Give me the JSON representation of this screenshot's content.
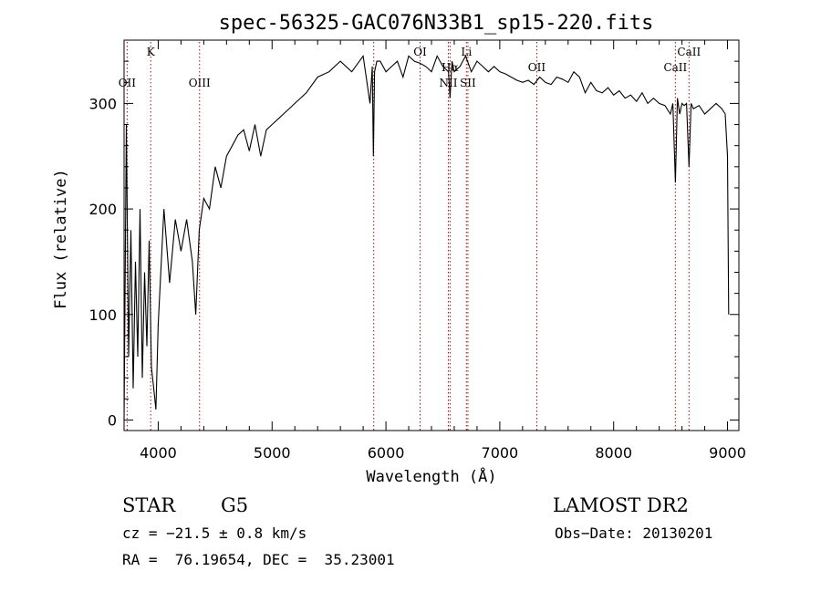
{
  "chart_data": {
    "type": "line",
    "title": "spec-56325-GAC076N33B1_sp15-220.fits",
    "xlabel": "Wavelength (Å)",
    "ylabel": "Flux (relative)",
    "xlim": [
      3700,
      9100
    ],
    "ylim": [
      -10,
      360
    ],
    "xticks": [
      4000,
      5000,
      6000,
      7000,
      8000,
      9000
    ],
    "yticks": [
      0,
      100,
      200,
      300
    ],
    "grid": false,
    "series": [
      {
        "x": [
          3700,
          3720,
          3740,
          3760,
          3780,
          3800,
          3820,
          3840,
          3860,
          3880,
          3900,
          3920,
          3940,
          3960,
          3980,
          4000,
          4050,
          4100,
          4150,
          4200,
          4250,
          4300,
          4330,
          4360,
          4400,
          4450,
          4500,
          4550,
          4600,
          4650,
          4700,
          4750,
          4800,
          4850,
          4900,
          4950,
          5000,
          5100,
          5200,
          5300,
          5400,
          5500,
          5600,
          5700,
          5800,
          5860,
          5880,
          5890,
          5900,
          5920,
          5950,
          6000,
          6050,
          6100,
          6150,
          6200,
          6250,
          6300,
          6350,
          6400,
          6450,
          6500,
          6550,
          6563,
          6580,
          6600,
          6650,
          6700,
          6750,
          6800,
          6850,
          6900,
          6950,
          7000,
          7050,
          7100,
          7150,
          7200,
          7250,
          7300,
          7350,
          7400,
          7450,
          7500,
          7550,
          7600,
          7650,
          7700,
          7750,
          7800,
          7850,
          7900,
          7950,
          8000,
          8050,
          8100,
          8150,
          8200,
          8250,
          8300,
          8350,
          8400,
          8450,
          8498,
          8520,
          8542,
          8560,
          8580,
          8600,
          8620,
          8640,
          8662,
          8680,
          8700,
          8750,
          8800,
          8850,
          8900,
          8950,
          8980,
          9000,
          9010
        ],
        "y": [
          0,
          280,
          60,
          180,
          30,
          150,
          60,
          200,
          40,
          140,
          70,
          170,
          50,
          30,
          10,
          90,
          200,
          130,
          190,
          160,
          190,
          150,
          100,
          180,
          210,
          200,
          240,
          220,
          250,
          260,
          270,
          275,
          255,
          280,
          250,
          275,
          280,
          290,
          300,
          310,
          325,
          330,
          340,
          330,
          345,
          300,
          335,
          250,
          330,
          340,
          340,
          330,
          335,
          340,
          325,
          345,
          340,
          338,
          335,
          330,
          345,
          335,
          330,
          305,
          340,
          330,
          335,
          345,
          330,
          340,
          335,
          330,
          335,
          330,
          328,
          325,
          322,
          320,
          322,
          318,
          325,
          320,
          318,
          325,
          323,
          320,
          330,
          325,
          310,
          320,
          312,
          310,
          315,
          308,
          312,
          305,
          308,
          302,
          310,
          300,
          305,
          300,
          298,
          290,
          300,
          225,
          305,
          290,
          300,
          298,
          300,
          240,
          300,
          295,
          298,
          290,
          295,
          300,
          295,
          290,
          250,
          100
        ]
      }
    ],
    "lines": [
      {
        "label": "OII",
        "x": 3727,
        "row": "low"
      },
      {
        "label": "K",
        "x": 3934,
        "row": "high"
      },
      {
        "label": "OIII",
        "x": 4363,
        "row": "low"
      },
      {
        "label": "",
        "x": 5893,
        "row": "none"
      },
      {
        "label": "OI",
        "x": 6300,
        "row": "high"
      },
      {
        "label": "NII",
        "x": 6548,
        "row": "low"
      },
      {
        "label": "Hα",
        "x": 6563,
        "row": "mid"
      },
      {
        "label": "Li",
        "x": 6707,
        "row": "high"
      },
      {
        "label": "SII",
        "x": 6720,
        "row": "low"
      },
      {
        "label": "OII",
        "x": 7325,
        "row": "mid"
      },
      {
        "label": "CaII",
        "x": 8542,
        "row": "mid"
      },
      {
        "label": "CaII",
        "x": 8662,
        "row": "high"
      }
    ],
    "info": {
      "class_label": "STAR",
      "subclass": "G5",
      "survey": "LAMOST DR2",
      "cz": "cz = −21.5 ± 0.8 km/s",
      "obs_date": "Obs−Date: 20130201",
      "coords": "RA =  76.19654, DEC =  35.23001"
    }
  }
}
